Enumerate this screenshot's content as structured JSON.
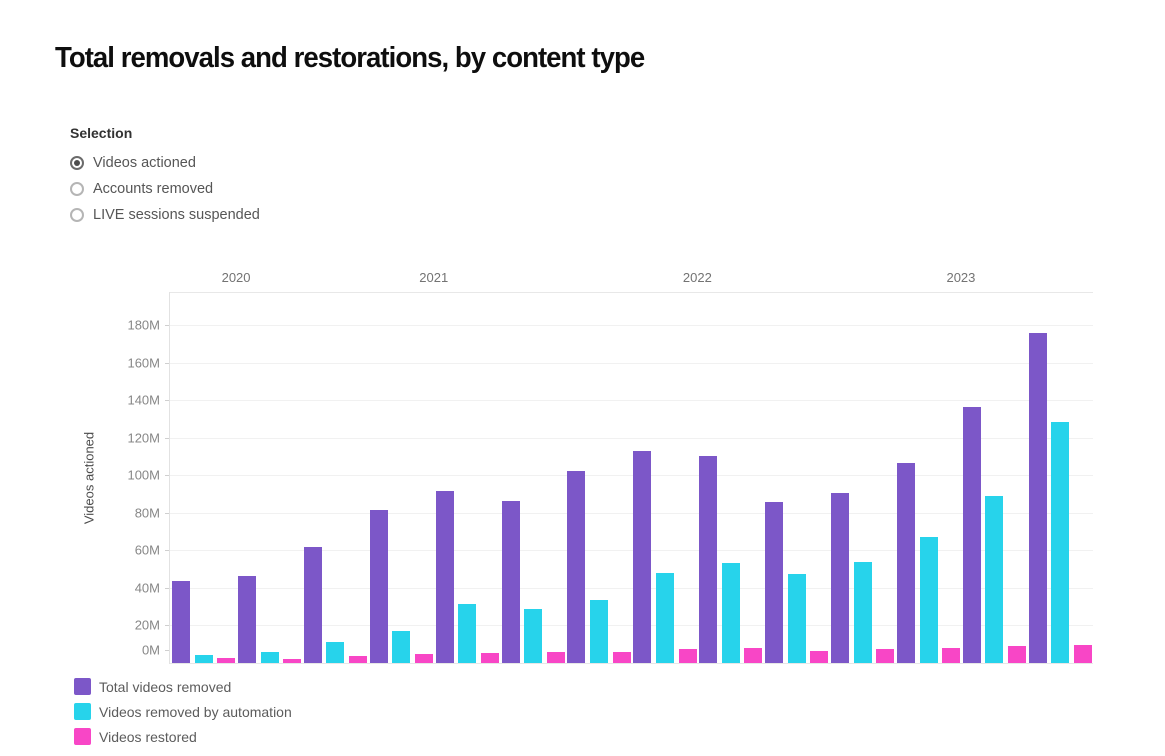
{
  "page": {
    "title": "Total removals and restorations, by content type"
  },
  "selection": {
    "label": "Selection",
    "options": [
      {
        "label": "Videos actioned",
        "selected": true
      },
      {
        "label": "Accounts removed",
        "selected": false
      },
      {
        "label": "LIVE sessions suspended",
        "selected": false
      }
    ]
  },
  "chart_data": {
    "type": "bar",
    "title": "Total removals and restorations, by content type",
    "xlabel": "",
    "ylabel": "Videos actioned",
    "unit": "M",
    "ylim": [
      0,
      198
    ],
    "grid": true,
    "legend_position": "bottom-left",
    "y_ticks": [
      0,
      20,
      40,
      60,
      80,
      100,
      120,
      140,
      160,
      180
    ],
    "y_tick_labels": [
      "0M",
      "20M",
      "40M",
      "60M",
      "80M",
      "100M",
      "120M",
      "140M",
      "160M",
      "180M"
    ],
    "years": [
      {
        "label": "2020",
        "quarters": 2
      },
      {
        "label": "2021",
        "quarters": 4
      },
      {
        "label": "2022",
        "quarters": 4
      },
      {
        "label": "2023",
        "quarters": 4
      }
    ],
    "series": [
      {
        "name": "Total videos removed",
        "color": "#7c57c8",
        "values": [
          43.5,
          46.5,
          62,
          81.5,
          91.5,
          86.5,
          102,
          113,
          110.5,
          85.5,
          90.5,
          106.5,
          136.5,
          176
        ]
      },
      {
        "name": "Videos removed by automation",
        "color": "#27d3eb",
        "values": [
          4.5,
          6,
          11,
          17,
          31.5,
          29,
          33.5,
          48,
          53.5,
          47.5,
          54,
          67,
          89,
          128.5
        ]
      },
      {
        "name": "Videos restored",
        "color": "#f846c6",
        "values": [
          2.5,
          2,
          3.5,
          5,
          5.5,
          6,
          6,
          7.5,
          8,
          6.5,
          7.5,
          8,
          9,
          9.5
        ]
      }
    ]
  }
}
